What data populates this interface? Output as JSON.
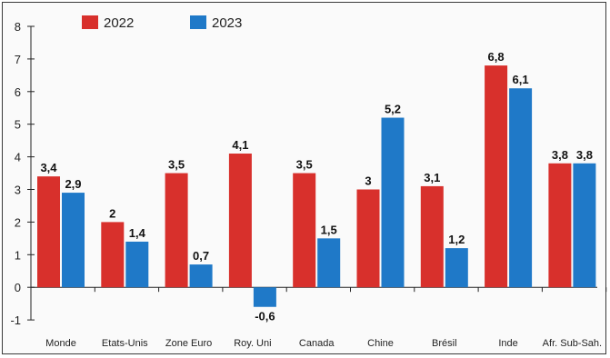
{
  "chart_data": {
    "type": "bar",
    "categories": [
      "Monde",
      "Etats-Unis",
      "Zone Euro",
      "Roy. Uni",
      "Canada",
      "Chine",
      "Brésil",
      "Inde",
      "Afr. Sub-Sah."
    ],
    "series": [
      {
        "name": "2022",
        "color": "#d8302c",
        "values": [
          3.4,
          2,
          3.5,
          4.1,
          3.5,
          3,
          3.1,
          6.8,
          3.8
        ],
        "labels": [
          "3,4",
          "2",
          "3,5",
          "4,1",
          "3,5",
          "3",
          "3,1",
          "6,8",
          "3,8"
        ]
      },
      {
        "name": "2023",
        "color": "#1f79c8",
        "values": [
          2.9,
          1.4,
          0.7,
          -0.6,
          1.5,
          5.2,
          1.2,
          6.1,
          3.8
        ],
        "labels": [
          "2,9",
          "1,4",
          "0,7",
          "-0,6",
          "1,5",
          "5,2",
          "1,2",
          "6,1",
          "3,8"
        ]
      }
    ],
    "ylim": [
      -1,
      8
    ],
    "yticks": [
      "-1",
      "0",
      "1",
      "2",
      "3",
      "4",
      "5",
      "6",
      "7",
      "8"
    ],
    "legend_position": "top-left",
    "title": "",
    "xlabel": "",
    "ylabel": ""
  }
}
